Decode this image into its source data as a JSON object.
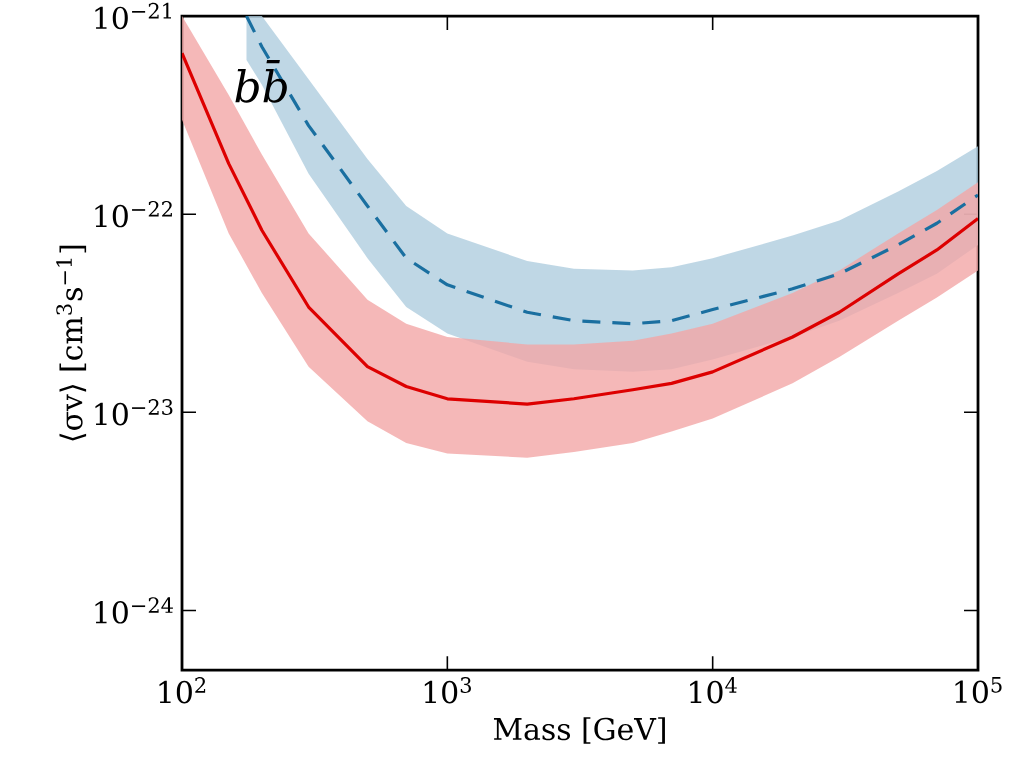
{
  "chart_data": {
    "type": "line",
    "xlabel": "Mass [GeV]",
    "ylabel": "⟨σv⟩ [cm$^{3}$s$^{−1}$]",
    "log": "xy",
    "grid": false,
    "xlim": [
      100,
      100000
    ],
    "ylim": [
      5e-25,
      1e-21
    ],
    "xticks": [
      {
        "value": 100,
        "label": "10$^{2}$"
      },
      {
        "value": 1000,
        "label": "10$^{3}$"
      },
      {
        "value": 10000,
        "label": "10$^{4}$"
      },
      {
        "value": 100000,
        "label": "10$^{5}$"
      }
    ],
    "yticks": [
      {
        "value": 1e-24,
        "label": "10$^{−24}$"
      },
      {
        "value": 1e-23,
        "label": "10$^{−23}$"
      },
      {
        "value": 1e-22,
        "label": "10$^{−22}$"
      },
      {
        "value": 1e-21,
        "label": "10$^{−21}$"
      }
    ],
    "annotations": [
      "bb̄"
    ],
    "series": [
      {
        "color": "#1a6fa0",
        "line_style": "dashed",
        "x": [
          175,
          200,
          300,
          500,
          700,
          1000,
          2000,
          3000,
          5000,
          7000,
          10000,
          20000,
          30000,
          50000,
          70000,
          100000
        ],
        "values": [
          1e-21,
          7e-22,
          2.8e-22,
          1.1e-22,
          6e-23,
          4.4e-23,
          3.2e-23,
          2.9e-23,
          2.8e-23,
          2.9e-23,
          3.3e-23,
          4.2e-23,
          5e-23,
          7e-23,
          9e-23,
          1.25e-22
        ],
        "upper": [
          1e-21,
          1e-21,
          4.8e-22,
          1.9e-22,
          1.1e-22,
          8e-23,
          5.8e-23,
          5.3e-23,
          5.2e-23,
          5.4e-23,
          6e-23,
          7.8e-23,
          9.3e-23,
          1.3e-22,
          1.65e-22,
          2.2e-22
        ],
        "lower": [
          6e-22,
          4.5e-22,
          1.6e-22,
          6e-23,
          3.4e-23,
          2.5e-23,
          1.8e-23,
          1.65e-23,
          1.6e-23,
          1.65e-23,
          1.85e-23,
          2.4e-23,
          2.9e-23,
          4e-23,
          5e-23,
          7e-23
        ]
      },
      {
        "color": "#dd0000",
        "line_style": "solid",
        "x": [
          100,
          150,
          200,
          300,
          500,
          700,
          1000,
          2000,
          3000,
          5000,
          7000,
          10000,
          20000,
          30000,
          50000,
          70000,
          100000
        ],
        "values": [
          6.5e-22,
          1.8e-22,
          8.3e-23,
          3.4e-23,
          1.7e-23,
          1.35e-23,
          1.17e-23,
          1.1e-23,
          1.17e-23,
          1.3e-23,
          1.4e-23,
          1.6e-23,
          2.4e-23,
          3.2e-23,
          5e-23,
          6.6e-23,
          9.5e-23
        ],
        "upper": [
          1e-21,
          4e-22,
          2e-22,
          8e-23,
          3.7e-23,
          2.8e-23,
          2.4e-23,
          2.2e-23,
          2.2e-23,
          2.3e-23,
          2.5e-23,
          2.8e-23,
          4e-23,
          5.2e-23,
          8e-23,
          1.05e-22,
          1.45e-22
        ],
        "lower": [
          3e-22,
          8e-23,
          4e-23,
          1.7e-23,
          9e-24,
          7e-24,
          6.2e-24,
          5.9e-24,
          6.3e-24,
          7e-24,
          8e-24,
          9.3e-24,
          1.4e-23,
          1.9e-23,
          2.9e-23,
          3.8e-23,
          5.2e-23
        ]
      }
    ]
  }
}
